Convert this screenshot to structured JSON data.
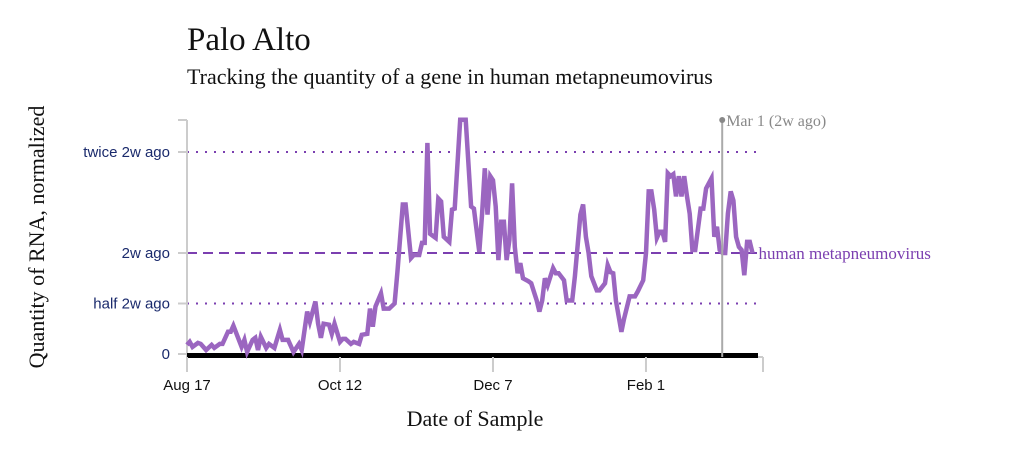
{
  "title": "Palo Alto",
  "subtitle": "Tracking the quantity of a gene in human metapneumovirus",
  "chart_data": {
    "type": "line",
    "title": "Palo Alto",
    "subtitle": "Tracking the quantity of a gene in human metapneumovirus",
    "xlabel": "Date of Sample",
    "ylabel": "Quantity of RNA, normalized",
    "x_ticks": [
      "Aug 17",
      "Oct 12",
      "Dec 7",
      "Feb 1"
    ],
    "y_ticks": [
      {
        "value": 0,
        "label": "0"
      },
      {
        "value": 0.5,
        "label": "half 2w ago"
      },
      {
        "value": 1,
        "label": "2w ago"
      },
      {
        "value": 2,
        "label": "twice 2w ago"
      }
    ],
    "ylim": [
      0,
      2.32
    ],
    "xlim": [
      "Aug 17",
      "Mar 13"
    ],
    "grid": false,
    "reference_lines": [
      {
        "value": 1,
        "style": "dashed",
        "label": "human metapneumovirus"
      },
      {
        "value": 0.5,
        "style": "dotted"
      },
      {
        "value": 2,
        "style": "dotted"
      }
    ],
    "marker": {
      "date": "Mar 1",
      "label": "Mar 1 (2w ago)"
    },
    "colors": {
      "series": "#9b66c0",
      "reference": "#7b3fb0",
      "tick_labels": "#1a2a6c",
      "marker": "#aaaaaa"
    },
    "series": [
      {
        "name": "human metapneumovirus",
        "points": [
          [
            "Aug 17",
            0.09
          ],
          [
            "Aug 18",
            0.12
          ],
          [
            "Aug 19",
            0.07
          ],
          [
            "Aug 21",
            0.11
          ],
          [
            "Aug 22",
            0.1
          ],
          [
            "Aug 24",
            0.04
          ],
          [
            "Aug 26",
            0.09
          ],
          [
            "Aug 27",
            0.06
          ],
          [
            "Aug 29",
            0.1
          ],
          [
            "Aug 30",
            0.1
          ],
          [
            "Sep 1",
            0.22
          ],
          [
            "Sep 2",
            0.22
          ],
          [
            "Sep 3",
            0.28
          ],
          [
            "Sep 5",
            0.14
          ],
          [
            "Sep 6",
            0.07
          ],
          [
            "Sep 7",
            0.14
          ],
          [
            "Sep 8",
            0.02
          ],
          [
            "Sep 10",
            0.14
          ],
          [
            "Sep 11",
            0.16
          ],
          [
            "Sep 12",
            0.04
          ],
          [
            "Sep 13",
            0.17
          ],
          [
            "Sep 15",
            0.06
          ],
          [
            "Sep 16",
            0.1
          ],
          [
            "Sep 18",
            0.06
          ],
          [
            "Sep 20",
            0.24
          ],
          [
            "Sep 21",
            0.14
          ],
          [
            "Sep 23",
            0.14
          ],
          [
            "Sep 25",
            0.02
          ],
          [
            "Sep 27",
            0.1
          ],
          [
            "Sep 28",
            0.04
          ],
          [
            "Sep 30",
            0.42
          ],
          [
            "Oct 1",
            0.32
          ],
          [
            "Oct 3",
            0.52
          ],
          [
            "Oct 4",
            0.3
          ],
          [
            "Oct 5",
            0.16
          ],
          [
            "Oct 6",
            0.3
          ],
          [
            "Oct 8",
            0.29
          ],
          [
            "Oct 9",
            0.2
          ],
          [
            "Oct 10",
            0.3
          ],
          [
            "Oct 12",
            0.12
          ],
          [
            "Oct 13",
            0.15
          ],
          [
            "Oct 14",
            0.15
          ],
          [
            "Oct 16",
            0.1
          ],
          [
            "Oct 17",
            0.12
          ],
          [
            "Oct 19",
            0.1
          ],
          [
            "Oct 20",
            0.19
          ],
          [
            "Oct 22",
            0.2
          ],
          [
            "Oct 23",
            0.45
          ],
          [
            "Oct 24",
            0.27
          ],
          [
            "Oct 25",
            0.47
          ],
          [
            "Oct 27",
            0.6
          ],
          [
            "Oct 28",
            0.45
          ],
          [
            "Oct 30",
            0.45
          ],
          [
            "Nov 1",
            0.5
          ],
          [
            "Nov 2",
            0.81
          ],
          [
            "Nov 4",
            1.48
          ],
          [
            "Nov 5",
            1.48
          ],
          [
            "Nov 7",
            0.95
          ],
          [
            "Nov 8",
            0.98
          ],
          [
            "Nov 10",
            0.98
          ],
          [
            "Nov 11",
            1.1
          ],
          [
            "Nov 12",
            1.1
          ],
          [
            "Nov 13",
            2.09
          ],
          [
            "Nov 14",
            1.19
          ],
          [
            "Nov 16",
            1.15
          ],
          [
            "Nov 17",
            1.54
          ],
          [
            "Nov 18",
            1.51
          ],
          [
            "Nov 19",
            1.16
          ],
          [
            "Nov 21",
            1.11
          ],
          [
            "Nov 22",
            1.43
          ],
          [
            "Nov 23",
            1.44
          ],
          [
            "Nov 25",
            2.32
          ],
          [
            "Nov 27",
            2.32
          ],
          [
            "Nov 29",
            1.46
          ],
          [
            "Nov 30",
            1.44
          ],
          [
            "Dec 2",
            1.01
          ],
          [
            "Dec 3",
            1.39
          ],
          [
            "Dec 4",
            1.84
          ],
          [
            "Dec 5",
            1.38
          ],
          [
            "Dec 6",
            1.76
          ],
          [
            "Dec 7",
            1.72
          ],
          [
            "Dec 8",
            1.46
          ],
          [
            "Dec 9",
            0.93
          ],
          [
            "Dec 10",
            1.31
          ],
          [
            "Dec 11",
            1.31
          ],
          [
            "Dec 12",
            0.93
          ],
          [
            "Dec 13",
            1.13
          ],
          [
            "Dec 14",
            1.69
          ],
          [
            "Dec 15",
            1.06
          ],
          [
            "Dec 16",
            0.8
          ],
          [
            "Dec 17",
            0.9
          ],
          [
            "Dec 18",
            0.75
          ],
          [
            "Dec 20",
            0.72
          ],
          [
            "Dec 21",
            0.7
          ],
          [
            "Dec 23",
            0.53
          ],
          [
            "Dec 24",
            0.42
          ],
          [
            "Dec 25",
            0.53
          ],
          [
            "Dec 26",
            0.75
          ],
          [
            "Dec 27",
            0.68
          ],
          [
            "Dec 29",
            0.85
          ],
          [
            "Dec 30",
            0.8
          ],
          [
            "Dec 31",
            0.8
          ],
          [
            "Jan 2",
            0.73
          ],
          [
            "Jan 3",
            0.53
          ],
          [
            "Jan 5",
            0.53
          ],
          [
            "Jan 6",
            0.77
          ],
          [
            "Jan 8",
            1.38
          ],
          [
            "Jan 9",
            1.48
          ],
          [
            "Jan 10",
            1.16
          ],
          [
            "Jan 11",
            1.0
          ],
          [
            "Jan 12",
            0.77
          ],
          [
            "Jan 14",
            0.63
          ],
          [
            "Jan 15",
            0.63
          ],
          [
            "Jan 17",
            0.7
          ],
          [
            "Jan 18",
            0.88
          ],
          [
            "Jan 19",
            0.81
          ],
          [
            "Jan 20",
            0.8
          ],
          [
            "Jan 21",
            0.53
          ],
          [
            "Jan 23",
            0.22
          ],
          [
            "Jan 24",
            0.35
          ],
          [
            "Jan 26",
            0.57
          ],
          [
            "Jan 28",
            0.57
          ],
          [
            "Jan 29",
            0.62
          ],
          [
            "Jan 31",
            0.73
          ],
          [
            "Feb 1",
            1.0
          ],
          [
            "Feb 2",
            1.61
          ],
          [
            "Feb 3",
            1.61
          ],
          [
            "Feb 4",
            1.43
          ],
          [
            "Feb 5",
            1.15
          ],
          [
            "Feb 6",
            1.21
          ],
          [
            "Feb 7",
            1.21
          ],
          [
            "Feb 8",
            1.11
          ],
          [
            "Feb 9",
            1.79
          ],
          [
            "Feb 10",
            1.76
          ],
          [
            "Feb 11",
            1.78
          ],
          [
            "Feb 12",
            1.56
          ],
          [
            "Feb 13",
            1.76
          ],
          [
            "Feb 14",
            1.56
          ],
          [
            "Feb 15",
            1.76
          ],
          [
            "Feb 16",
            1.56
          ],
          [
            "Feb 17",
            1.39
          ],
          [
            "Feb 18",
            1.03
          ],
          [
            "Feb 19",
            1.03
          ],
          [
            "Feb 21",
            1.44
          ],
          [
            "Feb 22",
            1.44
          ],
          [
            "Feb 23",
            1.64
          ],
          [
            "Feb 25",
            1.74
          ],
          [
            "Feb 26",
            1.16
          ],
          [
            "Feb 27",
            1.26
          ],
          [
            "Feb 28",
            1.03
          ],
          [
            "Feb 29",
            1.0
          ],
          [
            "Mar 1",
            1.0
          ],
          [
            "Mar 2",
            1.39
          ],
          [
            "Mar 3",
            1.61
          ],
          [
            "Mar 4",
            1.52
          ],
          [
            "Mar 5",
            1.16
          ],
          [
            "Mar 6",
            1.06
          ],
          [
            "Mar 7",
            1.03
          ],
          [
            "Mar 8",
            0.78
          ],
          [
            "Mar 9",
            1.11
          ],
          [
            "Mar 10",
            1.11
          ],
          [
            "Mar 11",
            1.0
          ]
        ]
      }
    ]
  }
}
